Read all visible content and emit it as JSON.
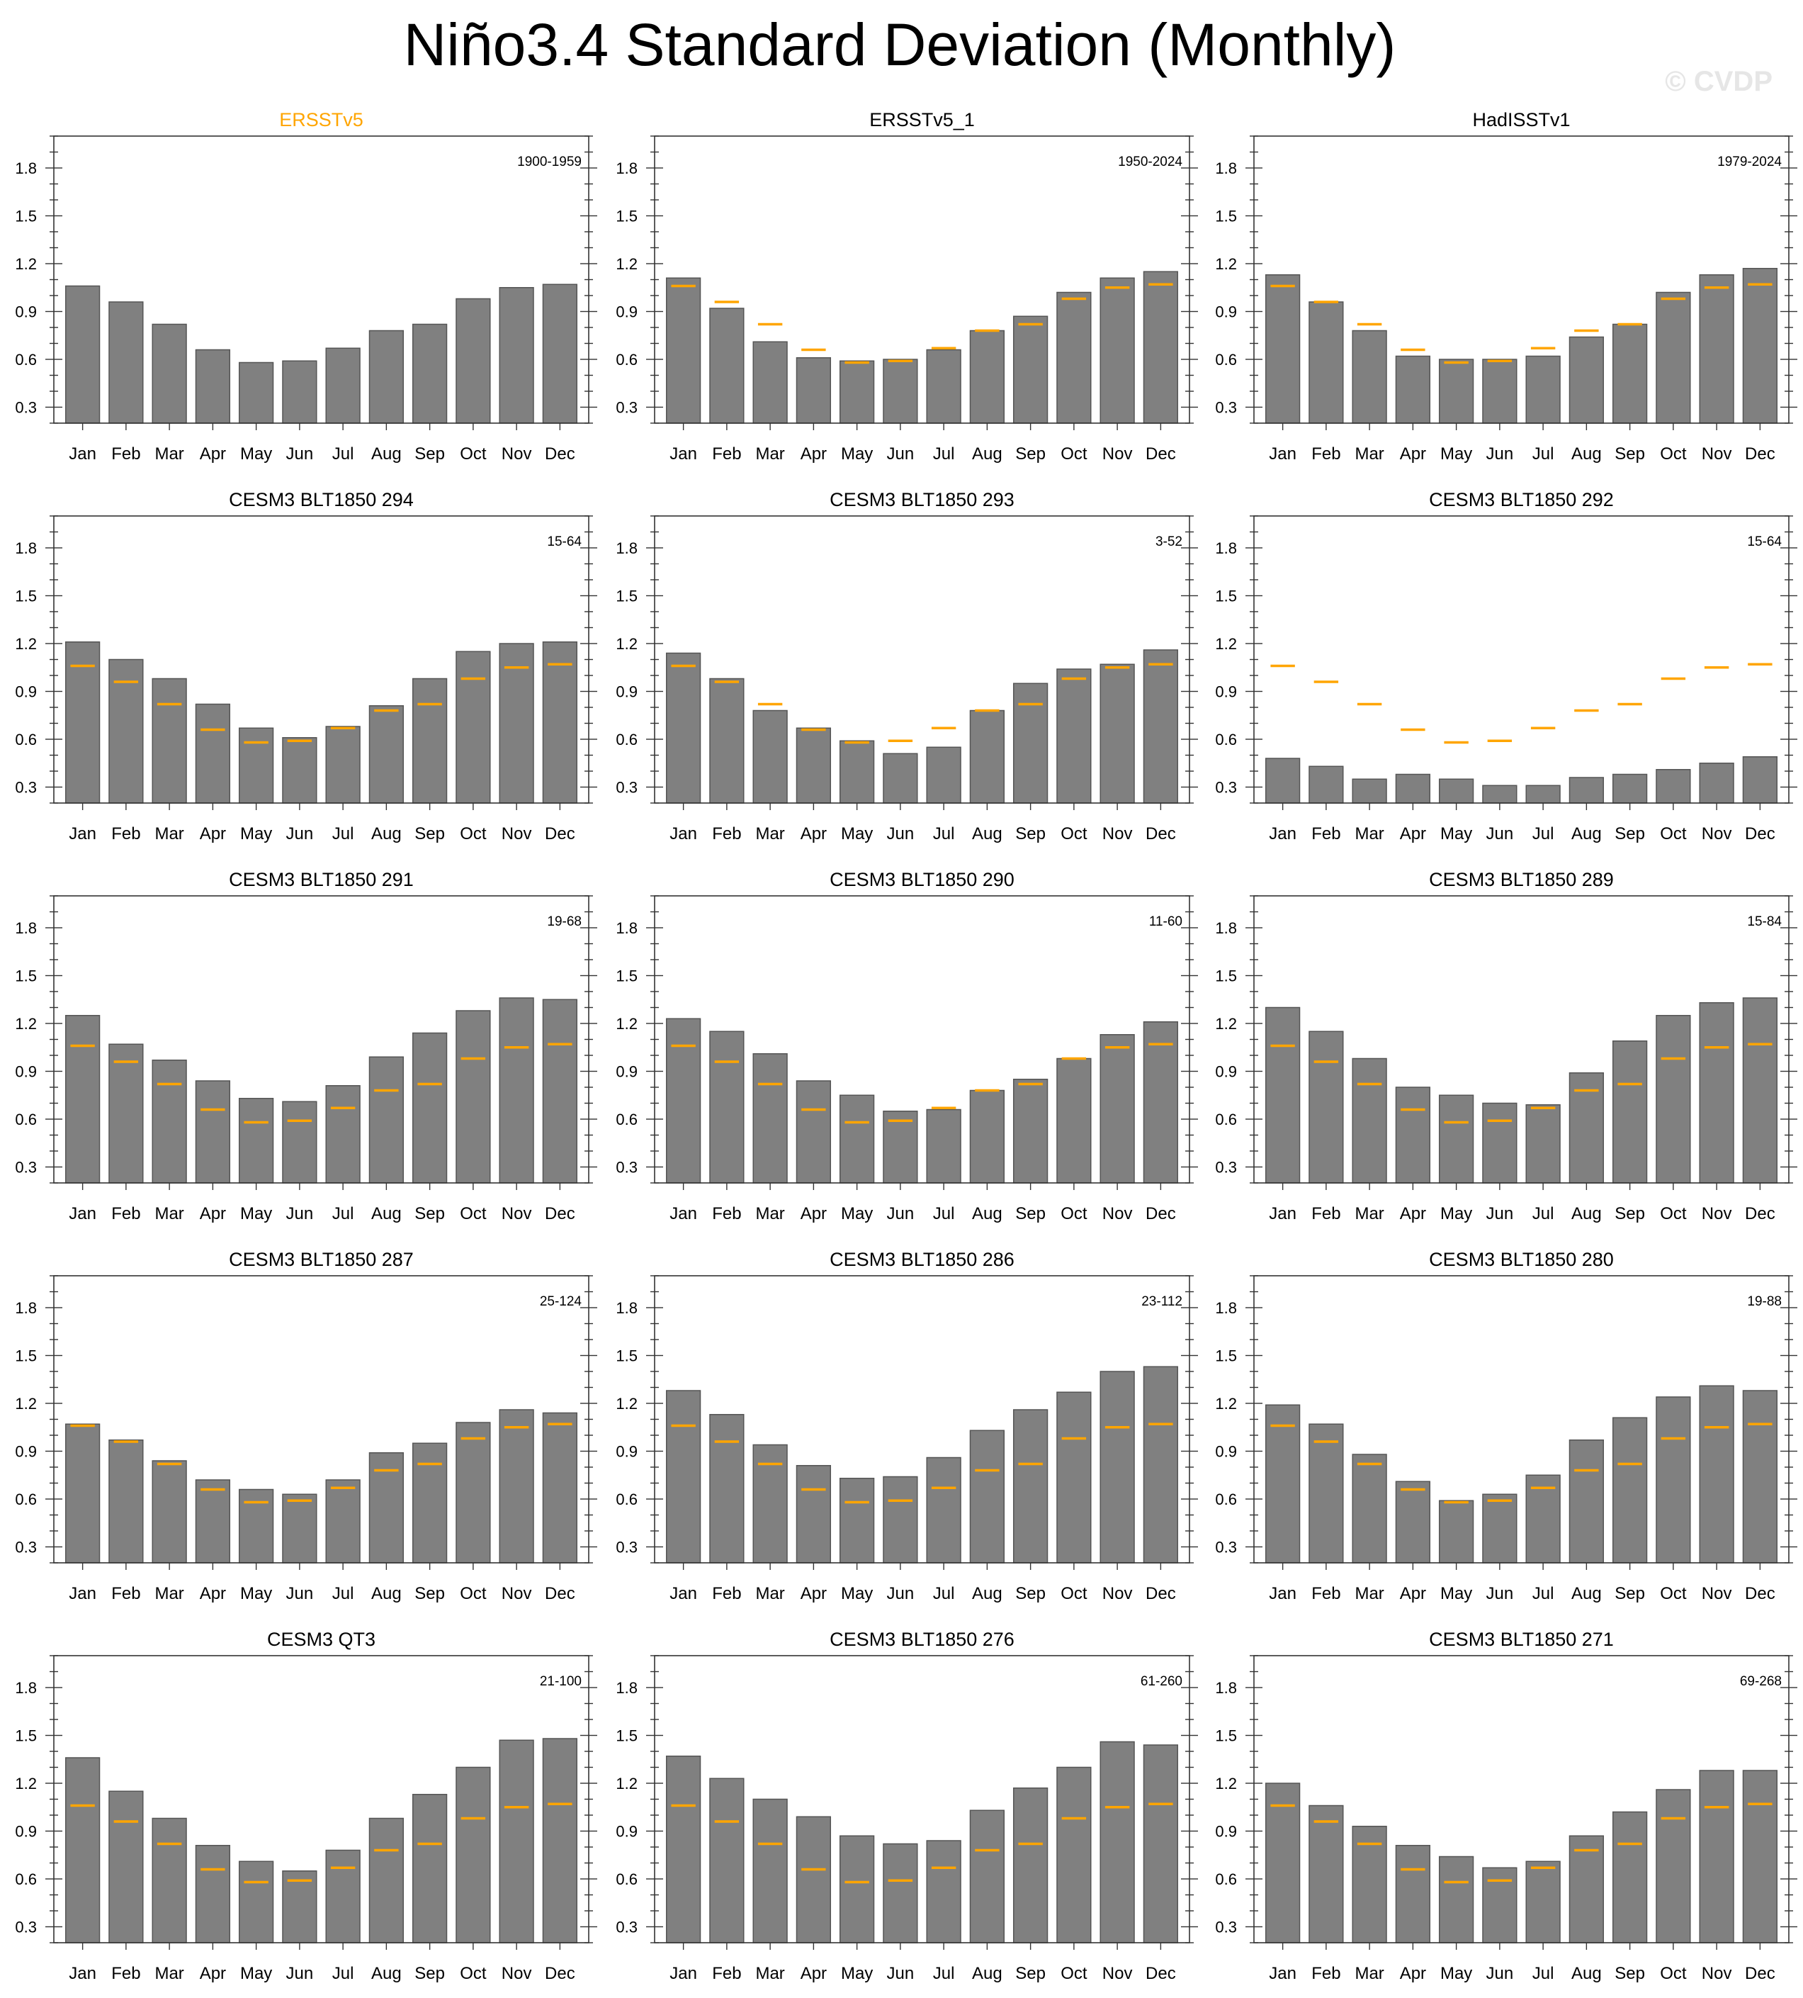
{
  "page": {
    "title": "Niño3.4 Standard Deviation (Monthly)",
    "watermark": "© CVDP"
  },
  "colors": {
    "bar": "#808080",
    "reference": "#ffa500",
    "observation_title": "#ffa500"
  },
  "chart_data": {
    "type": "bar",
    "categories": [
      "Jan",
      "Feb",
      "Mar",
      "Apr",
      "May",
      "Jun",
      "Jul",
      "Aug",
      "Sep",
      "Oct",
      "Nov",
      "Dec"
    ],
    "ylim": [
      0.2,
      2.0
    ],
    "yticks": [
      0.3,
      0.6,
      0.9,
      1.2,
      1.5,
      1.8
    ],
    "reference_name": "ERSSTv5",
    "reference": [
      1.06,
      0.96,
      0.82,
      0.66,
      0.58,
      0.59,
      0.67,
      0.78,
      0.82,
      0.98,
      1.05,
      1.07
    ],
    "panels": [
      {
        "title": "ERSSTv5",
        "period": "1900-1959",
        "observation": true,
        "show_reference": false,
        "values": [
          1.06,
          0.96,
          0.82,
          0.66,
          0.58,
          0.59,
          0.67,
          0.78,
          0.82,
          0.98,
          1.05,
          1.07
        ]
      },
      {
        "title": "ERSSTv5_1",
        "period": "1950-2024",
        "observation": false,
        "show_reference": true,
        "values": [
          1.11,
          0.92,
          0.71,
          0.61,
          0.59,
          0.6,
          0.66,
          0.78,
          0.87,
          1.02,
          1.11,
          1.15
        ]
      },
      {
        "title": "HadISSTv1",
        "period": "1979-2024",
        "observation": false,
        "show_reference": true,
        "values": [
          1.13,
          0.96,
          0.78,
          0.62,
          0.6,
          0.6,
          0.62,
          0.74,
          0.82,
          1.02,
          1.13,
          1.17
        ]
      },
      {
        "title": "CESM3 BLT1850 294",
        "period": "15-64",
        "observation": false,
        "show_reference": true,
        "values": [
          1.21,
          1.1,
          0.98,
          0.82,
          0.67,
          0.61,
          0.68,
          0.81,
          0.98,
          1.15,
          1.2,
          1.21
        ]
      },
      {
        "title": "CESM3 BLT1850 293",
        "period": "3-52",
        "observation": false,
        "show_reference": true,
        "values": [
          1.14,
          0.98,
          0.78,
          0.67,
          0.59,
          0.51,
          0.55,
          0.78,
          0.95,
          1.04,
          1.07,
          1.16
        ]
      },
      {
        "title": "CESM3 BLT1850 292",
        "period": "15-64",
        "observation": false,
        "show_reference": true,
        "values": [
          0.48,
          0.43,
          0.35,
          0.38,
          0.35,
          0.31,
          0.31,
          0.36,
          0.38,
          0.41,
          0.45,
          0.49
        ]
      },
      {
        "title": "CESM3 BLT1850 291",
        "period": "19-68",
        "observation": false,
        "show_reference": true,
        "values": [
          1.25,
          1.07,
          0.97,
          0.84,
          0.73,
          0.71,
          0.81,
          0.99,
          1.14,
          1.28,
          1.36,
          1.35
        ]
      },
      {
        "title": "CESM3 BLT1850 290",
        "period": "11-60",
        "observation": false,
        "show_reference": true,
        "values": [
          1.23,
          1.15,
          1.01,
          0.84,
          0.75,
          0.65,
          0.66,
          0.78,
          0.85,
          0.98,
          1.13,
          1.21
        ]
      },
      {
        "title": "CESM3 BLT1850 289",
        "period": "15-84",
        "observation": false,
        "show_reference": true,
        "values": [
          1.3,
          1.15,
          0.98,
          0.8,
          0.75,
          0.7,
          0.69,
          0.89,
          1.09,
          1.25,
          1.33,
          1.36
        ]
      },
      {
        "title": "CESM3 BLT1850 287",
        "period": "25-124",
        "observation": false,
        "show_reference": true,
        "values": [
          1.07,
          0.97,
          0.84,
          0.72,
          0.66,
          0.63,
          0.72,
          0.89,
          0.95,
          1.08,
          1.16,
          1.14
        ]
      },
      {
        "title": "CESM3 BLT1850 286",
        "period": "23-112",
        "observation": false,
        "show_reference": true,
        "values": [
          1.28,
          1.13,
          0.94,
          0.81,
          0.73,
          0.74,
          0.86,
          1.03,
          1.16,
          1.27,
          1.4,
          1.43
        ]
      },
      {
        "title": "CESM3 BLT1850 280",
        "period": "19-88",
        "observation": false,
        "show_reference": true,
        "values": [
          1.19,
          1.07,
          0.88,
          0.71,
          0.59,
          0.63,
          0.75,
          0.97,
          1.11,
          1.24,
          1.31,
          1.28
        ]
      },
      {
        "title": "CESM3 QT3",
        "period": "21-100",
        "observation": false,
        "show_reference": true,
        "values": [
          1.36,
          1.15,
          0.98,
          0.81,
          0.71,
          0.65,
          0.78,
          0.98,
          1.13,
          1.3,
          1.47,
          1.48
        ]
      },
      {
        "title": "CESM3 BLT1850 276",
        "period": "61-260",
        "observation": false,
        "show_reference": true,
        "values": [
          1.37,
          1.23,
          1.1,
          0.99,
          0.87,
          0.82,
          0.84,
          1.03,
          1.17,
          1.3,
          1.46,
          1.44
        ]
      },
      {
        "title": "CESM3 BLT1850 271",
        "period": "69-268",
        "observation": false,
        "show_reference": true,
        "values": [
          1.2,
          1.06,
          0.93,
          0.81,
          0.74,
          0.67,
          0.71,
          0.87,
          1.02,
          1.16,
          1.28,
          1.28
        ]
      }
    ]
  }
}
